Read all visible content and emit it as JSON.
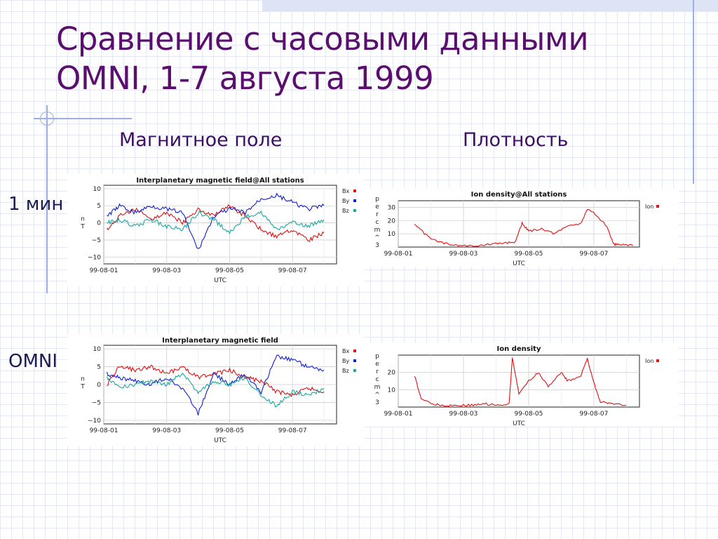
{
  "slide": {
    "title_line1": "Сравнение с часовыми данными",
    "title_line2": "OMNI, 1-7 августа 1999",
    "col_magnetic": "Магнитное поле",
    "col_density": "Плотность",
    "row_1min": "1 мин",
    "row_omni": "OMNI"
  },
  "chart_data": [
    {
      "type": "line",
      "title": "Interplanetary magnetic field@All stations",
      "xlabel": "UTC",
      "ylabel": "nT",
      "xticks": [
        "99-08-01",
        "99-08-03",
        "99-08-05",
        "99-08-07"
      ],
      "xlim": [
        0,
        7.4
      ],
      "yticks": [
        10,
        5,
        0,
        -5,
        -10
      ],
      "ylim": [
        -12,
        11
      ],
      "grid": true,
      "legend": "right",
      "series": [
        {
          "name": "Bx",
          "color": "#e01010",
          "x": [
            0.1,
            0.5,
            1.0,
            1.5,
            2.0,
            2.5,
            3.0,
            3.5,
            4.0,
            4.5,
            5.0,
            5.5,
            6.0,
            6.5,
            7.0
          ],
          "y": [
            -2,
            2,
            4,
            1,
            3,
            0,
            4,
            2,
            5,
            2,
            -2,
            -4,
            -2,
            -5,
            -3
          ]
        },
        {
          "name": "By",
          "color": "#1020d0",
          "x": [
            0.1,
            0.5,
            1.0,
            1.5,
            2.0,
            2.5,
            3.0,
            3.5,
            4.0,
            4.5,
            5.0,
            5.5,
            6.0,
            6.5,
            7.0
          ],
          "y": [
            2,
            5,
            3,
            5,
            4,
            3,
            -8,
            2,
            4,
            3,
            7,
            8,
            6,
            4,
            5
          ]
        },
        {
          "name": "Bz",
          "color": "#1aa8a0",
          "x": [
            0.1,
            0.5,
            1.0,
            1.5,
            2.0,
            2.5,
            3.0,
            3.5,
            4.0,
            4.5,
            5.0,
            5.5,
            6.0,
            6.5,
            7.0
          ],
          "y": [
            0,
            1,
            -1,
            1,
            -1,
            -2,
            3,
            1,
            -3,
            2,
            3,
            -2,
            0,
            -1,
            1
          ]
        }
      ]
    },
    {
      "type": "line",
      "title": "Ion density@All stations",
      "xlabel": "UTC",
      "ylabel": "per cm^3",
      "xticks": [
        "99-08-01",
        "99-08-03",
        "99-08-05",
        "99-08-07"
      ],
      "xlim": [
        0,
        7.4
      ],
      "yticks": [
        30,
        20,
        10
      ],
      "ylim": [
        0,
        35
      ],
      "grid": true,
      "legend": "right",
      "series": [
        {
          "name": "Ion",
          "color": "#e01010",
          "x": [
            0.5,
            0.8,
            1.2,
            1.6,
            2.0,
            2.4,
            2.8,
            3.2,
            3.6,
            3.8,
            4.0,
            4.4,
            4.8,
            5.2,
            5.6,
            5.8,
            6.0,
            6.4,
            6.6,
            6.8,
            7.2
          ],
          "y": [
            18,
            10,
            4,
            2,
            1,
            1,
            2,
            3,
            4,
            18,
            12,
            14,
            10,
            16,
            18,
            28,
            26,
            16,
            2,
            2,
            1
          ]
        }
      ]
    },
    {
      "type": "line",
      "title": "Interplanetary magnetic field",
      "xlabel": "UTC",
      "ylabel": "nT",
      "xticks": [
        "99-08-01",
        "99-08-03",
        "99-08-05",
        "99-08-07"
      ],
      "xlim": [
        0,
        7.4
      ],
      "yticks": [
        10,
        5,
        0,
        -5,
        -10
      ],
      "ylim": [
        -11,
        11
      ],
      "grid": true,
      "legend": "right",
      "series": [
        {
          "name": "Bx",
          "color": "#e01010",
          "x": [
            0.1,
            0.5,
            1.0,
            1.5,
            2.0,
            2.5,
            3.0,
            3.5,
            4.0,
            4.5,
            5.0,
            5.5,
            6.0,
            6.5,
            7.0
          ],
          "y": [
            0,
            5,
            4,
            5,
            3,
            5,
            2,
            3,
            4,
            2,
            1,
            -2,
            -3,
            -1,
            -2
          ]
        },
        {
          "name": "By",
          "color": "#1020d0",
          "x": [
            0.1,
            0.5,
            1.0,
            1.5,
            2.0,
            2.5,
            3.0,
            3.5,
            4.0,
            4.5,
            5.0,
            5.5,
            6.0,
            6.5,
            7.0
          ],
          "y": [
            3,
            2,
            1,
            0,
            2,
            -1,
            -8,
            3,
            0,
            3,
            -2,
            8,
            7,
            5,
            4
          ]
        },
        {
          "name": "Bz",
          "color": "#1aa8a0",
          "x": [
            0.1,
            0.5,
            1.0,
            1.5,
            2.0,
            2.5,
            3.0,
            3.5,
            4.0,
            4.5,
            5.0,
            5.5,
            6.0,
            6.5,
            7.0
          ],
          "y": [
            2,
            -1,
            0,
            1,
            0,
            3,
            -2,
            1,
            0,
            2,
            -3,
            -6,
            -2,
            -3,
            -1
          ]
        }
      ]
    },
    {
      "type": "line",
      "title": "Ion density",
      "xlabel": "UTC",
      "ylabel": "per cm^3",
      "xticks": [
        "99-08-01",
        "99-08-03",
        "99-08-05",
        "99-08-07"
      ],
      "xlim": [
        0,
        7.4
      ],
      "yticks": [
        20,
        10
      ],
      "ylim": [
        0,
        30
      ],
      "grid": true,
      "legend": "right",
      "series": [
        {
          "name": "Ion",
          "color": "#e01010",
          "x": [
            0.5,
            0.7,
            1.0,
            1.4,
            1.8,
            2.2,
            2.6,
            3.0,
            3.4,
            3.5,
            3.7,
            4.0,
            4.3,
            4.6,
            5.0,
            5.2,
            5.6,
            5.8,
            6.0,
            6.2,
            6.5,
            7.0
          ],
          "y": [
            18,
            5,
            2,
            1,
            1,
            1,
            2,
            1,
            2,
            28,
            8,
            15,
            20,
            12,
            20,
            15,
            18,
            28,
            14,
            3,
            2,
            1
          ]
        }
      ]
    }
  ]
}
